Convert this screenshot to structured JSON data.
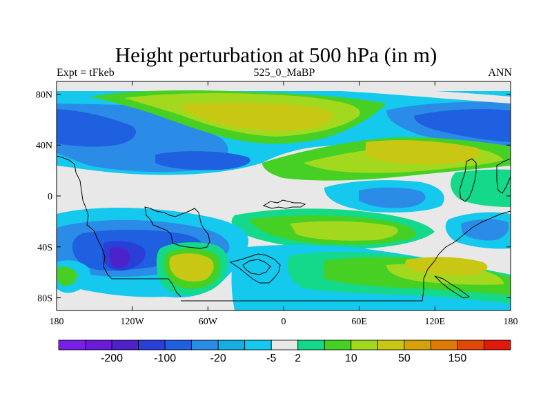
{
  "title": "Height perturbation at 500 hPa (in m)",
  "subtitle_left": "Expt = tFkeb",
  "subtitle_center": "525_0_MaBP",
  "subtitle_right": "ANN",
  "map": {
    "projection": "cylindrical-equidistant",
    "lon_range": [
      -180,
      180
    ],
    "lat_range": [
      -90,
      90
    ],
    "lat_ticks": [
      {
        "value": 80,
        "label": "80N"
      },
      {
        "value": 40,
        "label": "40N"
      },
      {
        "value": 0,
        "label": "0"
      },
      {
        "value": -40,
        "label": "40S"
      },
      {
        "value": -80,
        "label": "80S"
      }
    ],
    "lon_ticks": [
      {
        "value": -180,
        "label": "180"
      },
      {
        "value": -120,
        "label": "120W"
      },
      {
        "value": -60,
        "label": "60W"
      },
      {
        "value": 0,
        "label": "0"
      },
      {
        "value": 60,
        "label": "60E"
      },
      {
        "value": 120,
        "label": "120E"
      },
      {
        "value": 180,
        "label": "180"
      }
    ],
    "background_color": "#e8e8e8"
  },
  "colorbar": {
    "colors": [
      "#7a1fe6",
      "#6a1ad8",
      "#4d22c8",
      "#2a3ed8",
      "#1e60e0",
      "#2a8ce6",
      "#14aee0",
      "#14c8ee",
      "#e8e8e8",
      "#14d88a",
      "#46d024",
      "#a2d81e",
      "#c8c814",
      "#d6a20a",
      "#e07a06",
      "#e04808",
      "#e01a0a"
    ],
    "labels": [
      {
        "after_index": 1,
        "text": "-200"
      },
      {
        "after_index": 3,
        "text": "-100"
      },
      {
        "after_index": 5,
        "text": "-20"
      },
      {
        "after_index": 7,
        "text": "-5"
      },
      {
        "after_index": 8,
        "text": "2"
      },
      {
        "after_index": 10,
        "text": "10"
      },
      {
        "after_index": 12,
        "text": "50"
      },
      {
        "after_index": 14,
        "text": "150"
      }
    ]
  }
}
